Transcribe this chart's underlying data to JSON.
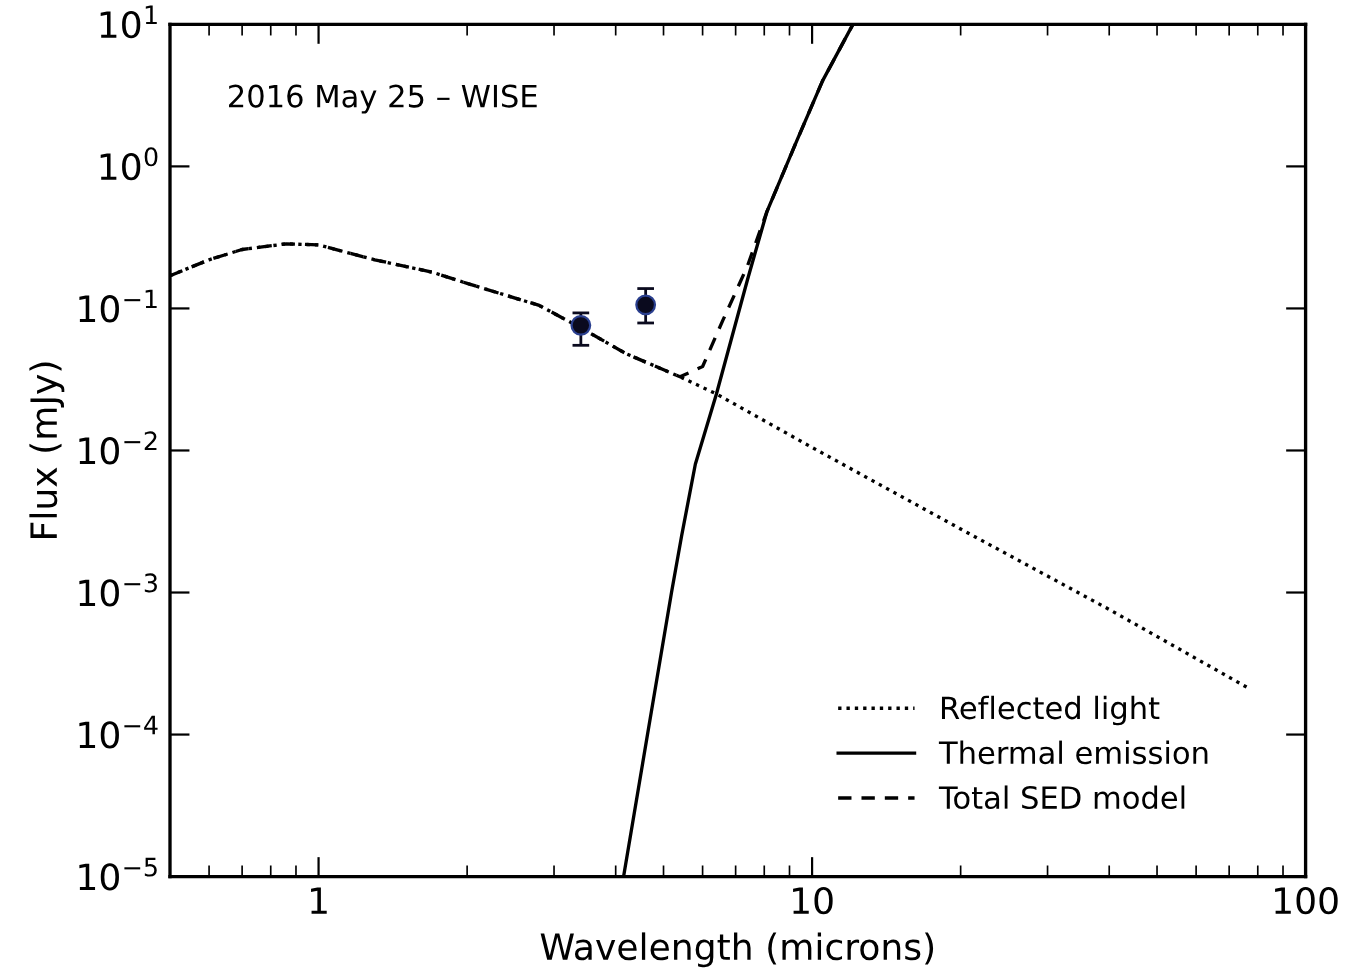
{
  "chart_data": {
    "type": "line",
    "xlabel": "Wavelength (microns)",
    "ylabel": "Flux (mJy)",
    "annotations": [
      "2016 May 25 – WISE"
    ],
    "log": "xy",
    "xlim": [
      0.5,
      100
    ],
    "ylim": [
      1e-05,
      10
    ],
    "xticks": [
      1,
      10,
      100
    ],
    "yticks": [
      {
        "value": 1e-05,
        "label": "10$^{−5}$"
      },
      {
        "value": 0.0001,
        "label": "10$^{−4}$"
      },
      {
        "value": 0.001,
        "label": "10$^{−3}$"
      },
      {
        "value": 0.01,
        "label": "10$^{−2}$"
      },
      {
        "value": 0.1,
        "label": "10$^{−1}$"
      },
      {
        "value": 1,
        "label": "10$^{0}$"
      },
      {
        "value": 10,
        "label": "10$^{1}$"
      }
    ],
    "grid": false,
    "legend": "bottom right",
    "series": [
      {
        "name": "Reflected light",
        "line_style": "dotted",
        "color": "#000000",
        "x": [
          0.5,
          0.6,
          0.7,
          0.86,
          1.0,
          1.3,
          1.7,
          2.0,
          2.8,
          3.4,
          4.2,
          5.4,
          6.4,
          10,
          20,
          40,
          77
        ],
        "values": [
          0.17,
          0.22,
          0.26,
          0.285,
          0.28,
          0.22,
          0.18,
          0.15,
          0.105,
          0.073,
          0.048,
          0.033,
          0.025,
          0.0105,
          0.0028,
          0.00076,
          0.00021
        ]
      },
      {
        "name": "Thermal emission",
        "line_style": "solid",
        "color": "#000000",
        "x": [
          4.15,
          4.64,
          5.19,
          5.44,
          5.8,
          6.4,
          7.4,
          8.1,
          9.3,
          10.5,
          12.1
        ],
        "values": [
          1e-05,
          0.0001,
          0.001,
          0.0025,
          0.008,
          0.025,
          0.16,
          0.48,
          1.5,
          4,
          10
        ]
      },
      {
        "name": "Total SED model",
        "line_style": "dashed",
        "color": "#000000",
        "x": [
          0.5,
          0.6,
          0.7,
          0.86,
          1.0,
          1.3,
          1.7,
          2.0,
          2.8,
          3.4,
          4.2,
          5.4,
          6.0,
          6.6,
          7.0,
          7.4,
          8.1,
          9.3,
          10.5,
          12.1
        ],
        "values": [
          0.17,
          0.22,
          0.26,
          0.285,
          0.28,
          0.22,
          0.18,
          0.15,
          0.105,
          0.073,
          0.048,
          0.033,
          0.039,
          0.083,
          0.13,
          0.2,
          0.48,
          1.5,
          4,
          10
        ]
      },
      {
        "type": "scatter",
        "marker": "circle",
        "color": "#0a0a1e",
        "x": [
          3.4,
          4.6
        ],
        "values": [
          0.076,
          0.106
        ],
        "errors": [
          [
            0.055,
            0.093
          ],
          [
            0.079,
            0.138
          ]
        ]
      }
    ]
  }
}
